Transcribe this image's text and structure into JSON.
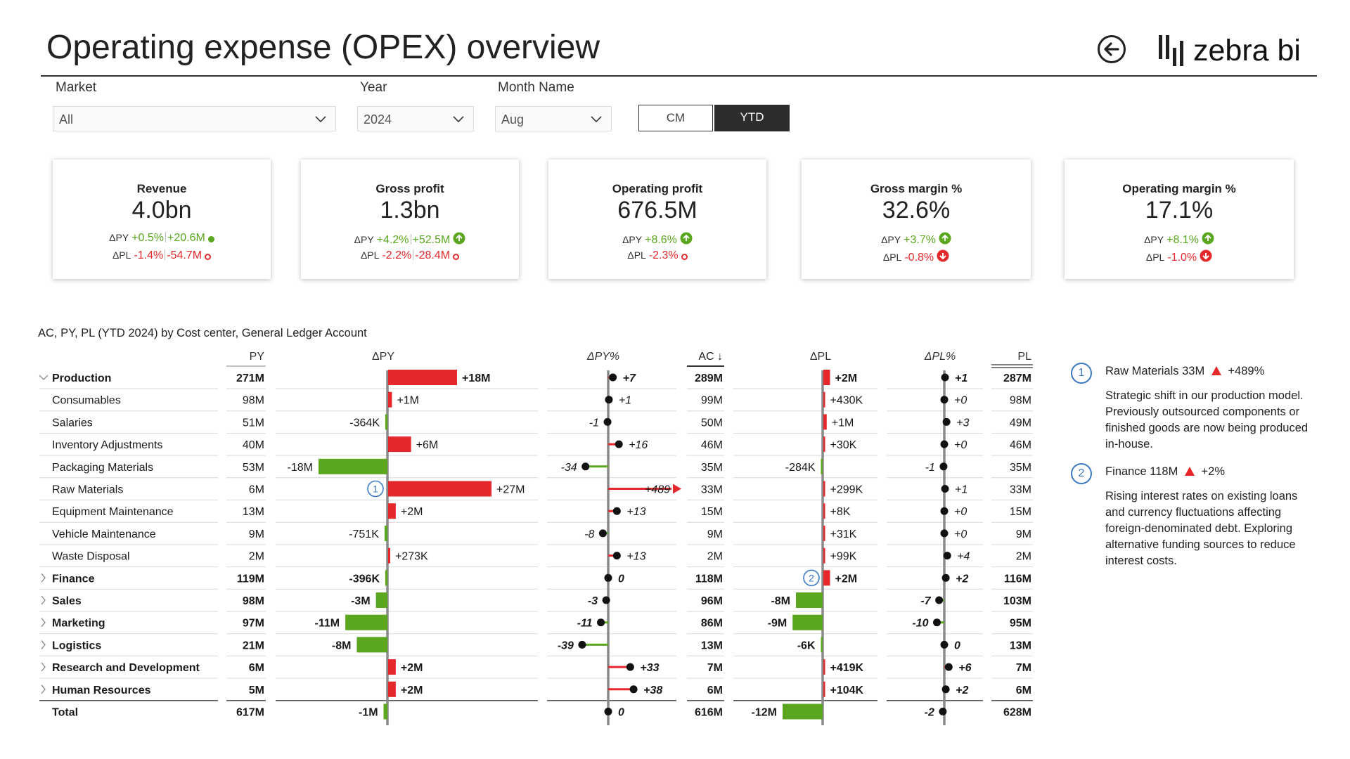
{
  "header": {
    "title": "Operating expense (OPEX) overview",
    "logo_text": "zebra bi"
  },
  "colors": {
    "positive": "#5aa61e",
    "negative": "#e5282b",
    "axis": "#8a8a8a",
    "accent": "#3b78c2"
  },
  "filters": {
    "market": {
      "label": "Market",
      "value": "All"
    },
    "year": {
      "label": "Year",
      "value": "2024"
    },
    "month": {
      "label": "Month Name",
      "value": "Aug"
    },
    "period_toggle": {
      "options": [
        "CM",
        "YTD"
      ],
      "selected": "YTD"
    }
  },
  "kpis": [
    {
      "title": "Revenue",
      "value": "4.0bn",
      "py_label": "ΔPY",
      "py_pct": "+0.5%",
      "py_abs": "+20.6M",
      "py_status": "pos",
      "pl_label": "ΔPL",
      "pl_pct": "-1.4%",
      "pl_abs": "-54.7M",
      "pl_status": "neg"
    },
    {
      "title": "Gross profit",
      "value": "1.3bn",
      "py_label": "ΔPY",
      "py_pct": "+4.2%",
      "py_abs": "+52.5M",
      "py_status": "pos",
      "pl_label": "ΔPL",
      "pl_pct": "-2.2%",
      "pl_abs": "-28.4M",
      "pl_status": "neg"
    },
    {
      "title": "Operating profit",
      "value": "676.5M",
      "py_label": "ΔPY",
      "py_pct": "+8.6%",
      "py_abs": "",
      "py_status": "pos",
      "pl_label": "ΔPL",
      "pl_pct": "-2.3%",
      "pl_abs": "",
      "pl_status": "neg"
    },
    {
      "title": "Gross margin %",
      "value": "32.6%",
      "py_label": "ΔPY",
      "py_pct": "+3.7%",
      "py_abs": "",
      "py_status": "pos",
      "pl_label": "ΔPL",
      "pl_pct": "-0.8%",
      "pl_abs": "",
      "pl_status": "neg"
    },
    {
      "title": "Operating margin %",
      "value": "17.1%",
      "py_label": "ΔPY",
      "py_pct": "+8.1%",
      "py_abs": "",
      "py_status": "pos",
      "pl_label": "ΔPL",
      "pl_pct": "-1.0%",
      "pl_abs": "",
      "pl_status": "neg"
    }
  ],
  "table": {
    "caption": "AC, PY, PL (YTD 2024) by Cost center, General Ledger Account",
    "headers": {
      "py": "PY",
      "dpy": "ΔPY",
      "dpy_pct": "ΔPY%",
      "ac": "AC ↓",
      "dpl": "ΔPL",
      "dpl_pct": "ΔPL%",
      "pl": "PL"
    }
  },
  "chart_data": {
    "type": "table",
    "rows": [
      {
        "name": "Production",
        "level": 0,
        "bold": true,
        "expand": "open",
        "py": "271M",
        "dpy": 18,
        "dpy_label": "+18M",
        "dpy_pct": 7,
        "dpy_pct_label": "+7",
        "ac": "289M",
        "dpl": 2,
        "dpl_label": "+2M",
        "dpl_pct": 1,
        "dpl_pct_label": "+1",
        "pl": "287M"
      },
      {
        "name": "Consumables",
        "level": 1,
        "bold": false,
        "expand": "",
        "py": "98M",
        "dpy": 1,
        "dpy_label": "+1M",
        "dpy_pct": 1,
        "dpy_pct_label": "+1",
        "ac": "99M",
        "dpl": 0.43,
        "dpl_label": "+430K",
        "dpl_pct": 0,
        "dpl_pct_label": "+0",
        "pl": "98M"
      },
      {
        "name": "Salaries",
        "level": 1,
        "bold": false,
        "expand": "",
        "py": "51M",
        "dpy": -0.364,
        "dpy_label": "-364K",
        "dpy_pct": -1,
        "dpy_pct_label": "-1",
        "ac": "50M",
        "dpl": 1,
        "dpl_label": "+1M",
        "dpl_pct": 3,
        "dpl_pct_label": "+3",
        "pl": "49M"
      },
      {
        "name": "Inventory Adjustments",
        "level": 1,
        "bold": false,
        "expand": "",
        "py": "40M",
        "dpy": 6,
        "dpy_label": "+6M",
        "dpy_pct": 16,
        "dpy_pct_label": "+16",
        "ac": "46M",
        "dpl": 0.03,
        "dpl_label": "+30K",
        "dpl_pct": 0,
        "dpl_pct_label": "+0",
        "pl": "46M"
      },
      {
        "name": "Packaging Materials",
        "level": 1,
        "bold": false,
        "expand": "",
        "py": "53M",
        "dpy": -18,
        "dpy_label": "-18M",
        "dpy_pct": -34,
        "dpy_pct_label": "-34",
        "ac": "35M",
        "dpl": -0.284,
        "dpl_label": "-284K",
        "dpl_pct": -1,
        "dpl_pct_label": "-1",
        "pl": "35M"
      },
      {
        "name": "Raw Materials",
        "level": 1,
        "bold": false,
        "expand": "",
        "py": "6M",
        "dpy": 27,
        "dpy_label": "+27M",
        "dpy_pct": 489,
        "dpy_pct_label": "+489",
        "ac": "33M",
        "dpl": 0.299,
        "dpl_label": "+299K",
        "dpl_pct": 1,
        "dpl_pct_label": "+1",
        "pl": "33M",
        "note_dpy": "1"
      },
      {
        "name": "Equipment Maintenance",
        "level": 1,
        "bold": false,
        "expand": "",
        "py": "13M",
        "dpy": 2,
        "dpy_label": "+2M",
        "dpy_pct": 13,
        "dpy_pct_label": "+13",
        "ac": "15M",
        "dpl": 0.008,
        "dpl_label": "+8K",
        "dpl_pct": 0,
        "dpl_pct_label": "+0",
        "pl": "15M"
      },
      {
        "name": "Vehicle Maintenance",
        "level": 1,
        "bold": false,
        "expand": "",
        "py": "9M",
        "dpy": -0.751,
        "dpy_label": "-751K",
        "dpy_pct": -8,
        "dpy_pct_label": "-8",
        "ac": "9M",
        "dpl": 0.031,
        "dpl_label": "+31K",
        "dpl_pct": 0,
        "dpl_pct_label": "+0",
        "pl": "9M"
      },
      {
        "name": "Waste Disposal",
        "level": 1,
        "bold": false,
        "expand": "",
        "py": "2M",
        "dpy": 0.273,
        "dpy_label": "+273K",
        "dpy_pct": 13,
        "dpy_pct_label": "+13",
        "ac": "2M",
        "dpl": 0.099,
        "dpl_label": "+99K",
        "dpl_pct": 4,
        "dpl_pct_label": "+4",
        "pl": "2M"
      },
      {
        "name": "Finance",
        "level": 0,
        "bold": true,
        "expand": "closed",
        "py": "119M",
        "dpy": -0.396,
        "dpy_label": "-396K",
        "dpy_pct": 0,
        "dpy_pct_label": "0",
        "ac": "118M",
        "dpl": 2,
        "dpl_label": "+2M",
        "dpl_pct": 2,
        "dpl_pct_label": "+2",
        "pl": "116M",
        "note_dpl": "2"
      },
      {
        "name": "Sales",
        "level": 0,
        "bold": true,
        "expand": "closed",
        "py": "98M",
        "dpy": -3,
        "dpy_label": "-3M",
        "dpy_pct": -3,
        "dpy_pct_label": "-3",
        "ac": "96M",
        "dpl": -8,
        "dpl_label": "-8M",
        "dpl_pct": -7,
        "dpl_pct_label": "-7",
        "pl": "103M"
      },
      {
        "name": "Marketing",
        "level": 0,
        "bold": true,
        "expand": "closed",
        "py": "97M",
        "dpy": -11,
        "dpy_label": "-11M",
        "dpy_pct": -11,
        "dpy_pct_label": "-11",
        "ac": "86M",
        "dpl": -9,
        "dpl_label": "-9M",
        "dpl_pct": -10,
        "dpl_pct_label": "-10",
        "pl": "95M"
      },
      {
        "name": "Logistics",
        "level": 0,
        "bold": true,
        "expand": "closed",
        "py": "21M",
        "dpy": -8,
        "dpy_label": "-8M",
        "dpy_pct": -39,
        "dpy_pct_label": "-39",
        "ac": "13M",
        "dpl": -0.006,
        "dpl_label": "-6K",
        "dpl_pct": 0,
        "dpl_pct_label": "0",
        "pl": "13M"
      },
      {
        "name": "Research and Development",
        "level": 0,
        "bold": true,
        "expand": "closed",
        "py": "6M",
        "dpy": 2,
        "dpy_label": "+2M",
        "dpy_pct": 33,
        "dpy_pct_label": "+33",
        "ac": "7M",
        "dpl": 0.419,
        "dpl_label": "+419K",
        "dpl_pct": 6,
        "dpl_pct_label": "+6",
        "pl": "7M"
      },
      {
        "name": "Human Resources",
        "level": 0,
        "bold": true,
        "expand": "closed",
        "py": "5M",
        "dpy": 2,
        "dpy_label": "+2M",
        "dpy_pct": 38,
        "dpy_pct_label": "+38",
        "ac": "6M",
        "dpl": 0.104,
        "dpl_label": "+104K",
        "dpl_pct": 2,
        "dpl_pct_label": "+2",
        "pl": "6M"
      },
      {
        "name": "Total",
        "level": 0,
        "bold": true,
        "expand": "",
        "py": "617M",
        "dpy": -1,
        "dpy_label": "-1M",
        "dpy_pct": 0,
        "dpy_pct_label": "0",
        "ac": "616M",
        "dpl": -12,
        "dpl_label": "-12M",
        "dpl_pct": -2,
        "dpl_pct_label": "-2",
        "pl": "628M"
      }
    ]
  },
  "notes": [
    {
      "num": "1",
      "head_label": "Raw Materials 33M",
      "head_change": "+489%",
      "body": "Strategic shift in our production model. Previously outsourced components or finished goods are now being produced in-house."
    },
    {
      "num": "2",
      "head_label": "Finance 118M",
      "head_change": "+2%",
      "body": "Rising interest rates on existing loans and currency fluctuations affecting foreign-denominated debt. Exploring alternative funding sources to reduce interest costs."
    }
  ]
}
